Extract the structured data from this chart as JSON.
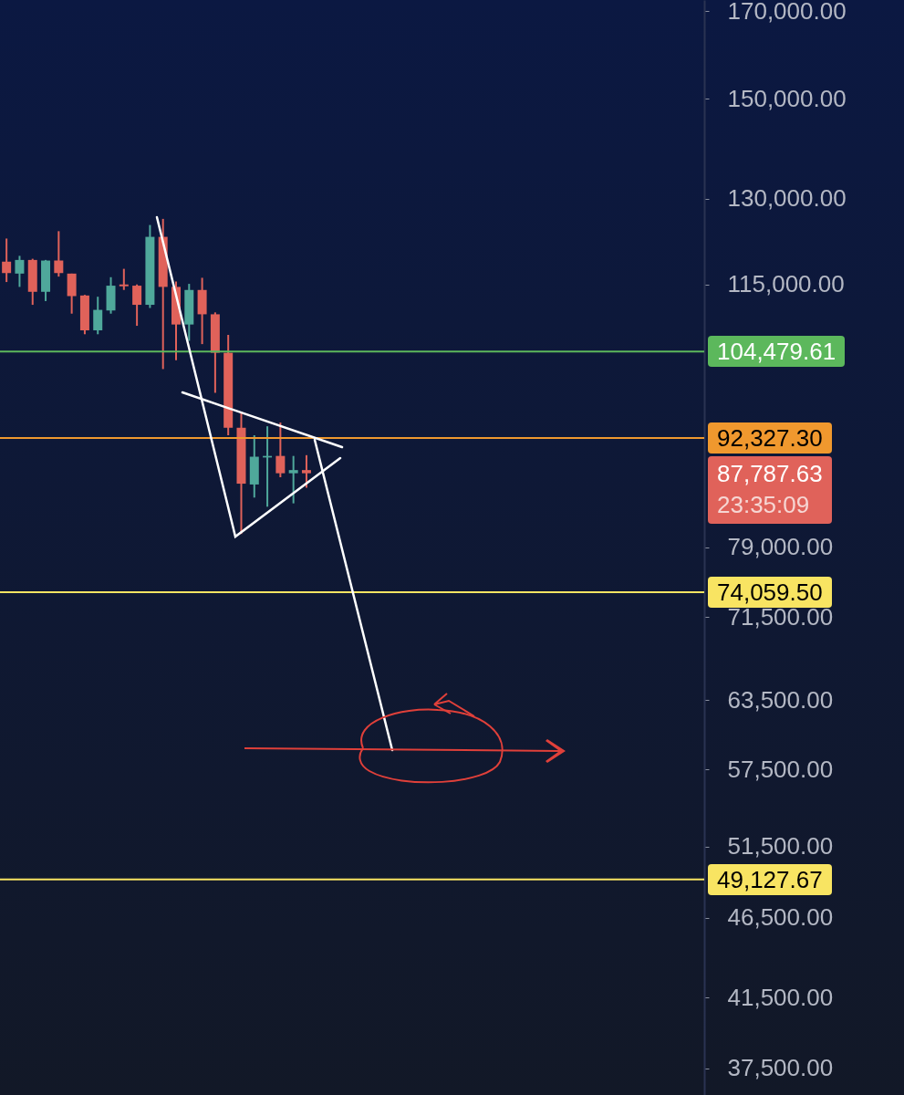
{
  "chart_data": {
    "type": "candlestick",
    "log": "y",
    "tick_labels": "y",
    "categories": [
      null,
      null,
      null,
      null,
      null,
      null,
      null,
      null,
      null,
      null,
      null,
      null,
      null,
      null,
      null,
      null,
      null,
      null,
      null,
      null,
      null,
      null,
      null,
      null,
      null,
      null,
      null,
      null,
      null,
      null,
      null,
      null,
      null,
      null,
      null,
      null,
      null,
      null,
      null,
      null,
      null,
      null,
      null,
      null,
      null,
      null,
      null,
      null,
      null,
      null,
      null,
      null,
      null,
      null
    ],
    "ohlc": [
      [
        118800,
        122800,
        115400,
        116900
      ],
      [
        116800,
        119800,
        114600,
        119100
      ],
      [
        119100,
        119300,
        111700,
        113800
      ],
      [
        113800,
        119100,
        112300,
        119000
      ],
      [
        119000,
        124100,
        116300,
        116900
      ],
      [
        116800,
        116800,
        110300,
        113100
      ],
      [
        113200,
        113300,
        107100,
        107700
      ],
      [
        107700,
        113000,
        107100,
        110900
      ],
      [
        110800,
        116200,
        110300,
        114800
      ],
      [
        115000,
        117600,
        114100,
        114700
      ],
      [
        114800,
        115000,
        108400,
        111700
      ],
      [
        111700,
        125200,
        111200,
        123100
      ],
      [
        123100,
        126300,
        101900,
        114600
      ],
      [
        114600,
        115500,
        103200,
        108600
      ],
      [
        108600,
        115100,
        106100,
        114100
      ],
      [
        114100,
        116100,
        105600,
        110200
      ],
      [
        110200,
        110500,
        98500,
        104300
      ],
      [
        104300,
        107000,
        92700,
        93700
      ],
      [
        93700,
        95800,
        80500,
        86500
      ],
      [
        86400,
        92700,
        84800,
        89900
      ],
      [
        89800,
        93900,
        83700,
        90000
      ],
      [
        90000,
        94400,
        87300,
        87800
      ],
      [
        87800,
        90000,
        84100,
        88200
      ],
      [
        88200,
        90100,
        86000,
        87800
      ],
      null,
      null,
      null,
      null,
      null,
      null,
      null,
      null,
      null,
      null,
      null,
      null,
      null,
      null,
      null,
      null,
      null,
      null,
      null,
      null,
      null,
      null,
      null,
      null,
      null,
      null,
      null,
      null,
      null,
      null
    ],
    "colors": [
      "#e0625a",
      "#4fa89b",
      "#e0625a",
      "#4fa89b",
      "#e0625a",
      "#e0625a",
      "#e0625a",
      "#4fa89b",
      "#4fa89b",
      "#e0625a",
      "#e0625a",
      "#4fa89b",
      "#e0625a",
      "#e0625a",
      "#4fa89b",
      "#e0625a",
      "#e0625a",
      "#e0625a",
      "#e0625a",
      "#4fa89b",
      "#4fa89b",
      "#e0625a",
      "#4fa89b",
      "#e0625a",
      null,
      null,
      null,
      null,
      null,
      null,
      null,
      null,
      null,
      null,
      null,
      null,
      null,
      null,
      null,
      null,
      null,
      null,
      null,
      null,
      null,
      null,
      null,
      null,
      null,
      null,
      null,
      null,
      null,
      null
    ],
    "ylim": [
      36100,
      172700
    ],
    "yticks": [
      {
        "value": 170000,
        "label": "170,000.00"
      },
      {
        "value": 150000,
        "label": "150,000.00"
      },
      {
        "value": 130000,
        "label": "130,000.00"
      },
      {
        "value": 115000,
        "label": "115,000.00"
      },
      {
        "value": 79000,
        "label": "79,000.00"
      },
      {
        "value": 71500,
        "label": "71,500.00"
      },
      {
        "value": 63500,
        "label": "63,500.00"
      },
      {
        "value": 57500,
        "label": "57,500.00"
      },
      {
        "value": 51500,
        "label": "51,500.00"
      },
      {
        "value": 46500,
        "label": "46,500.00"
      },
      {
        "value": 41500,
        "label": "41,500.00"
      },
      {
        "value": 37500,
        "label": "37,500.00"
      }
    ],
    "ref_lines": [
      {
        "axis": "y",
        "value": 104479.61,
        "label": "104,479.61",
        "color": "#5cb85c"
      },
      {
        "axis": "y",
        "value": 92327.3,
        "label": "92,327.30",
        "color": "#f0982e"
      },
      {
        "axis": "y",
        "value": 74059.5,
        "label": "74,059.50",
        "color": "#f8e462"
      },
      {
        "axis": "y",
        "value": 49127.67,
        "label": "49,127.67",
        "color": "#f8e462"
      }
    ],
    "annotations": [
      "87,787.63",
      "23:35:09"
    ]
  }
}
